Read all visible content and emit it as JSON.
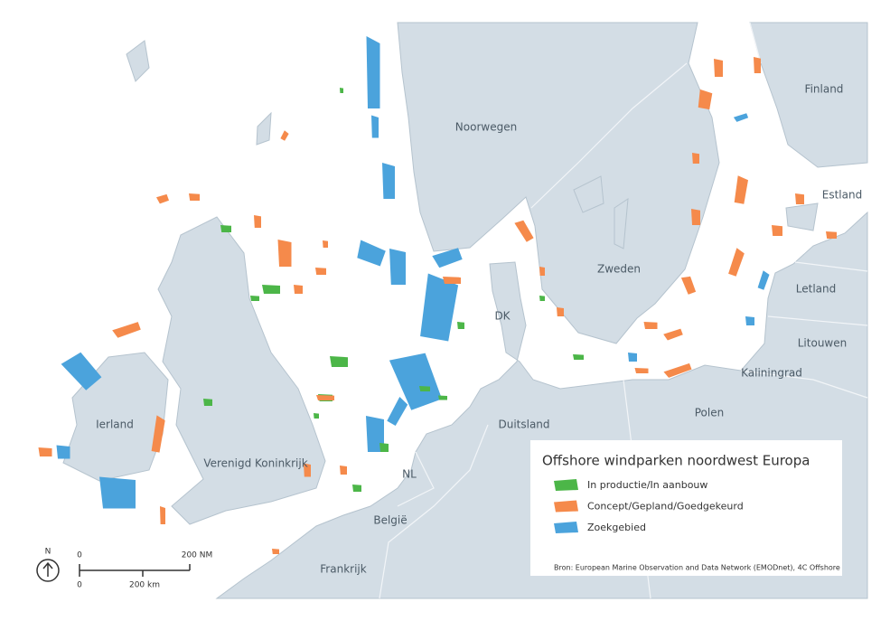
{
  "title": "Offshore windparken noordwest Europa",
  "legend": [
    {
      "label": "In productie/In aanbouw",
      "color": "#4cb648"
    },
    {
      "label": "Concept/Gepland/Goedgekeurd",
      "color": "#f58a4b"
    },
    {
      "label": "Zoekgebied",
      "color": "#4ba3dc"
    }
  ],
  "source": "Bron: European Marine Observation and Data Network (EMODnet), 4C Offshore",
  "places": [
    "Noorwegen",
    "Finland",
    "Estland",
    "Zweden",
    "DK",
    "Letland",
    "Litouwen",
    "Kaliningrad",
    "Polen",
    "Duitsland",
    "Ierland",
    "Verenigd Koninkrijk",
    "NL",
    "België",
    "Frankrijk"
  ],
  "scale": {
    "north": "N",
    "nm": [
      "0",
      "200 NM"
    ],
    "km": [
      "0",
      "200 km"
    ]
  }
}
